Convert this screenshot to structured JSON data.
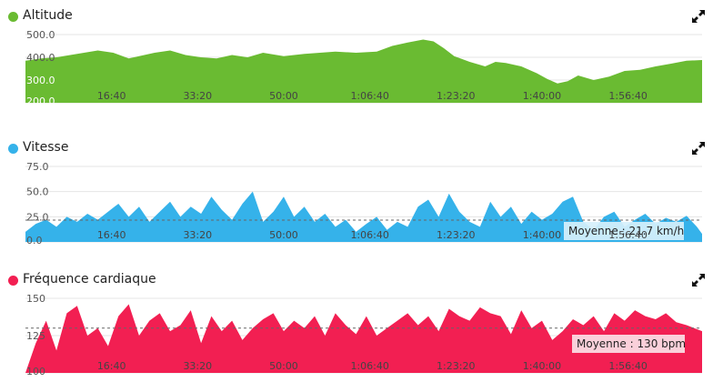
{
  "icons": {
    "expand": "expand-arrows-icon"
  },
  "chart_data": [
    {
      "type": "area",
      "title": "Altitude",
      "color": "#6abb32",
      "ylim": [
        200,
        500
      ],
      "yticks": [
        "500.0",
        "400.0",
        "300.0",
        "200.0"
      ],
      "ytick_values": [
        500,
        400,
        300,
        200
      ],
      "xlim": [
        0,
        131
      ],
      "xticks": [
        "16:40",
        "33:20",
        "50:00",
        "1:06:40",
        "1:23:20",
        "1:40:00",
        "1:56:40"
      ],
      "xtick_values": [
        16.67,
        33.33,
        50,
        66.67,
        83.33,
        100,
        116.67
      ],
      "x": [
        0,
        3,
        6,
        10,
        14,
        17,
        20,
        22,
        25,
        28,
        31,
        34,
        37,
        40,
        43,
        46,
        50,
        54,
        57,
        60,
        64,
        68,
        71,
        74,
        77,
        79,
        81,
        83,
        86,
        89,
        91,
        93,
        96,
        99,
        101,
        103,
        105,
        107,
        110,
        113,
        116,
        119,
        122,
        125,
        128,
        131
      ],
      "values": [
        385,
        395,
        400,
        415,
        430,
        420,
        395,
        405,
        420,
        430,
        410,
        400,
        395,
        410,
        400,
        420,
        405,
        415,
        420,
        425,
        420,
        425,
        450,
        465,
        478,
        470,
        440,
        405,
        380,
        360,
        380,
        375,
        360,
        330,
        305,
        285,
        295,
        320,
        300,
        315,
        340,
        345,
        360,
        372,
        385,
        388
      ]
    },
    {
      "type": "area",
      "title": "Vitesse",
      "color": "#35b2ea",
      "ylim": [
        0,
        75
      ],
      "yticks": [
        "75.0",
        "50.0",
        "25.0",
        "0.0"
      ],
      "ytick_values": [
        75,
        50,
        25,
        0
      ],
      "xlim": [
        0,
        131
      ],
      "xticks": [
        "16:40",
        "33:20",
        "50:00",
        "1:06:40",
        "1:23:20",
        "1:40:00",
        "1:56:40"
      ],
      "xtick_values": [
        16.67,
        33.33,
        50,
        66.67,
        83.33,
        100,
        116.67
      ],
      "average": 21.7,
      "average_label": "Moyenne : 21.7 km/h",
      "x": [
        0,
        2,
        4,
        6,
        8,
        10,
        12,
        14,
        16,
        18,
        20,
        22,
        24,
        26,
        28,
        30,
        32,
        34,
        36,
        38,
        40,
        42,
        44,
        46,
        48,
        50,
        52,
        54,
        56,
        58,
        60,
        62,
        64,
        66,
        68,
        70,
        72,
        74,
        76,
        78,
        80,
        82,
        84,
        86,
        88,
        90,
        92,
        94,
        96,
        98,
        100,
        102,
        104,
        106,
        108,
        110,
        112,
        114,
        116,
        118,
        120,
        122,
        124,
        126,
        128,
        130,
        131
      ],
      "values": [
        10,
        18,
        22,
        15,
        25,
        20,
        28,
        22,
        30,
        38,
        25,
        35,
        20,
        30,
        40,
        25,
        35,
        28,
        45,
        32,
        22,
        38,
        50,
        20,
        30,
        45,
        25,
        35,
        20,
        28,
        15,
        22,
        10,
        18,
        25,
        12,
        20,
        15,
        35,
        42,
        25,
        48,
        30,
        20,
        15,
        40,
        25,
        35,
        18,
        30,
        22,
        28,
        40,
        45,
        20,
        12,
        25,
        30,
        15,
        22,
        28,
        18,
        24,
        20,
        26,
        15,
        8
      ]
    },
    {
      "type": "area",
      "title": "Fréquence cardiaque",
      "color": "#f21f52",
      "ylim": [
        100,
        150
      ],
      "yticks": [
        "150",
        "125",
        "100"
      ],
      "ytick_values": [
        150,
        125,
        100
      ],
      "xlim": [
        0,
        131
      ],
      "xticks": [
        "16:40",
        "33:20",
        "50:00",
        "1:06:40",
        "1:23:20",
        "1:40:00",
        "1:56:40"
      ],
      "xtick_values": [
        16.67,
        33.33,
        50,
        66.67,
        83.33,
        100,
        116.67
      ],
      "average": 130,
      "average_label": "Moyenne : 130 bpm",
      "x": [
        0,
        2,
        4,
        6,
        8,
        10,
        12,
        14,
        16,
        18,
        20,
        22,
        24,
        26,
        28,
        30,
        32,
        34,
        36,
        38,
        40,
        42,
        44,
        46,
        48,
        50,
        52,
        54,
        56,
        58,
        60,
        62,
        64,
        66,
        68,
        70,
        72,
        74,
        76,
        78,
        80,
        82,
        84,
        86,
        88,
        90,
        92,
        94,
        96,
        98,
        100,
        102,
        104,
        106,
        108,
        110,
        112,
        114,
        116,
        118,
        120,
        122,
        124,
        126,
        128,
        131
      ],
      "values": [
        100,
        120,
        135,
        115,
        140,
        145,
        125,
        130,
        118,
        138,
        146,
        125,
        135,
        140,
        128,
        132,
        142,
        120,
        138,
        128,
        135,
        122,
        130,
        136,
        140,
        128,
        135,
        130,
        138,
        125,
        140,
        132,
        126,
        138,
        125,
        130,
        135,
        140,
        132,
        138,
        128,
        143,
        138,
        135,
        144,
        140,
        138,
        126,
        142,
        130,
        135,
        122,
        128,
        136,
        132,
        138,
        128,
        140,
        135,
        142,
        138,
        136,
        140,
        134,
        132,
        128
      ]
    }
  ]
}
